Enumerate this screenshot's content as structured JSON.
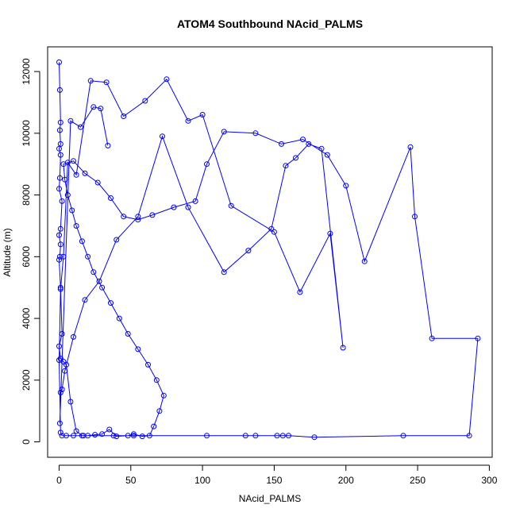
{
  "chart_data": {
    "type": "line",
    "title": "ATOM4 Southbound NAcid_PALMS",
    "xlabel": "NAcid_PALMS",
    "ylabel": "Altitude (m)",
    "xlim": [
      -8,
      302
    ],
    "ylim": [
      -500,
      12800
    ],
    "x_ticks": [
      0,
      50,
      100,
      150,
      200,
      250,
      300
    ],
    "x_tick_labels": [
      "0",
      "50",
      "100",
      "150",
      "200",
      "250",
      "300"
    ],
    "y_ticks": [
      0,
      2000,
      4000,
      6000,
      8000,
      10000,
      12000
    ],
    "y_tick_labels": [
      "0",
      "2000",
      "4000",
      "6000",
      "8000",
      "10000",
      "12000"
    ],
    "grid": false,
    "legend": "none",
    "line_color": "#0000ff",
    "marker": "open-circle",
    "series": [
      {
        "x": [
          0,
          0.5,
          1,
          0.5,
          1,
          0,
          1,
          0.5,
          0,
          2,
          1,
          0,
          1,
          0.5,
          0,
          1,
          2,
          0,
          1,
          3,
          5,
          8,
          12,
          16,
          20,
          25,
          30,
          35,
          40,
          48,
          52,
          58,
          63,
          66,
          70,
          73,
          68,
          62,
          55,
          48,
          42,
          36,
          30,
          24,
          20,
          16,
          12,
          9,
          6,
          4,
          3,
          10,
          18,
          27,
          36,
          45,
          55,
          65,
          80,
          95,
          103,
          115,
          137,
          155,
          170,
          187,
          200,
          213,
          245,
          248,
          260,
          292,
          286,
          240,
          178,
          160,
          156,
          152,
          137,
          130,
          103,
          52,
          38,
          17,
          10,
          5,
          2,
          1,
          0,
          1,
          3,
          6,
          12,
          22,
          33,
          45,
          60,
          75,
          90,
          100,
          120,
          150,
          168,
          189,
          198,
          183,
          174,
          165,
          158,
          148,
          132,
          115,
          90,
          72,
          55,
          40,
          28,
          18,
          10,
          4,
          2,
          1,
          0.5,
          8,
          15,
          24,
          29,
          34
        ],
        "y": [
          12300,
          11400,
          10350,
          10100,
          9650,
          9500,
          9300,
          8550,
          8200,
          7800,
          6900,
          6700,
          6400,
          6000,
          5900,
          5000,
          3500,
          3100,
          2700,
          2600,
          2500,
          1300,
          350,
          200,
          200,
          230,
          250,
          400,
          180,
          200,
          250,
          180,
          200,
          500,
          1000,
          1500,
          2000,
          2500,
          3000,
          3500,
          4000,
          4500,
          5000,
          5500,
          6000,
          6500,
          7000,
          7500,
          8000,
          8500,
          9000,
          9100,
          8700,
          8400,
          7900,
          7300,
          7200,
          7350,
          7600,
          7800,
          9000,
          10050,
          10000,
          9650,
          9800,
          9300,
          8300,
          5850,
          9550,
          7300,
          3350,
          3350,
          200,
          200,
          150,
          200,
          200,
          200,
          200,
          200,
          200,
          200,
          200,
          200,
          200,
          200,
          200,
          300,
          2650,
          4950,
          6000,
          9050,
          8650,
          11700,
          11650,
          10550,
          11050,
          11750,
          10400,
          10600,
          7650,
          6800,
          4850,
          6750,
          3050,
          9500,
          9650,
          9200,
          8950,
          6900,
          6200,
          5500,
          7600,
          9900,
          7300,
          6550,
          5200,
          4600,
          3400,
          2300,
          1700,
          1600,
          600,
          10400,
          10200,
          10850,
          10800,
          9600
        ]
      }
    ]
  }
}
